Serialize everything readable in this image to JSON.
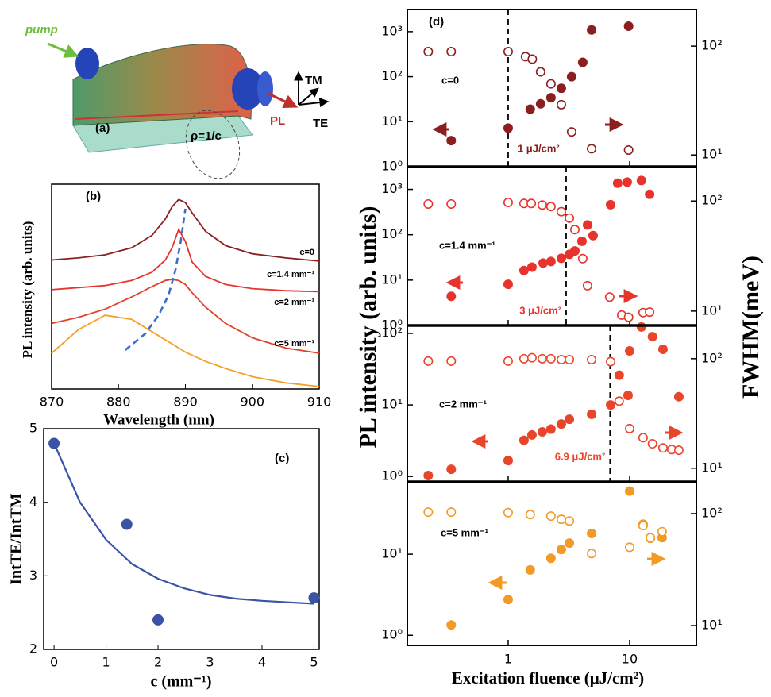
{
  "figure_a": {
    "panel": "(a)",
    "pump": "pump",
    "tm": "TM",
    "te": "TE",
    "pl": "PL",
    "radius": "ρ=1/c"
  },
  "chart_data": [
    {
      "type": "line",
      "panel": "(b)",
      "xlabel": "Wavelength (nm)",
      "ylabel": "PL intensity (arb. units)",
      "x": [
        870,
        874,
        878,
        882,
        885,
        887,
        888,
        889,
        890,
        891,
        893,
        896,
        900,
        905,
        910
      ],
      "xlim": [
        870,
        910
      ],
      "xticks": [
        870,
        880,
        890,
        900,
        910
      ],
      "ylim": [
        0,
        10
      ],
      "series": [
        {
          "name": "c=0",
          "color": "#8b1f1f",
          "values": [
            6.3,
            6.4,
            6.55,
            6.9,
            7.5,
            8.3,
            8.9,
            9.25,
            9.1,
            8.6,
            7.7,
            7.0,
            6.6,
            6.4,
            6.25
          ]
        },
        {
          "name": "c=1.4 mm⁻¹",
          "color": "#e8322c",
          "values": [
            4.85,
            4.95,
            5.05,
            5.3,
            5.7,
            6.3,
            6.9,
            7.8,
            7.2,
            6.2,
            5.5,
            5.1,
            4.9,
            4.8,
            4.75
          ]
        },
        {
          "name": "c=2 mm⁻¹",
          "color": "#e2402b",
          "values": [
            3.2,
            3.5,
            3.9,
            4.5,
            5.0,
            5.3,
            5.35,
            5.3,
            5.1,
            4.7,
            4.0,
            3.2,
            2.5,
            2.0,
            1.75
          ]
        },
        {
          "name": "c=5 mm⁻¹",
          "color": "#f5a024",
          "values": [
            1.75,
            2.9,
            3.6,
            3.4,
            2.8,
            2.4,
            2.2,
            2.0,
            1.8,
            1.65,
            1.35,
            1.0,
            0.6,
            0.3,
            0.12
          ]
        },
        {
          "color": "#3a6fc4",
          "dash": true,
          "x": [
            881,
            884,
            886,
            887.5,
            888.5,
            889.3,
            890
          ],
          "values": [
            1.9,
            2.7,
            3.6,
            4.6,
            5.8,
            7.2,
            8.8
          ]
        }
      ]
    },
    {
      "type": "scatter",
      "panel": "(c)",
      "xlabel": "c (mm⁻¹)",
      "ylabel": "IntTE/IntTM",
      "xlim": [
        -0.2,
        5.1
      ],
      "xticks": [
        0,
        1,
        2,
        3,
        4,
        5
      ],
      "ylim": [
        2,
        5
      ],
      "yticks": [
        2,
        3,
        4,
        5
      ],
      "series": [
        {
          "type": "scatter",
          "color": "#3a53a4",
          "x": [
            0,
            1.4,
            2,
            5
          ],
          "values": [
            4.8,
            3.7,
            2.4,
            2.7
          ]
        },
        {
          "type": "line",
          "color": "#3a53a4",
          "x": [
            0,
            0.5,
            1,
            1.5,
            2,
            2.5,
            3,
            3.5,
            4,
            4.5,
            5
          ],
          "values": [
            4.8,
            4.0,
            3.49,
            3.16,
            2.96,
            2.83,
            2.74,
            2.69,
            2.66,
            2.64,
            2.62
          ]
        }
      ]
    },
    {
      "type": "scatter",
      "panel": "(d)",
      "xlabel": "Excitation fluence (μJ/cm²)",
      "ylabel": "PL intensity (arb. units)",
      "y2label": "FWHM(meV)",
      "xscale": "log",
      "xlim": [
        0.148,
        35.4
      ],
      "xticks": [
        1,
        10
      ],
      "panels": [
        {
          "label": "c=0",
          "ylim": [
            1,
            3100
          ],
          "yticks": [
            {
              "value": 1,
              "label": "10⁰"
            },
            {
              "value": 10,
              "label": "10¹"
            },
            {
              "value": 100,
              "label": "10²"
            },
            {
              "value": 1000,
              "label": "10³"
            }
          ],
          "y2lim": [
            7.8,
            217
          ],
          "y2ticks": [
            {
              "value": 10,
              "label": "10¹"
            },
            {
              "value": 100,
              "label": "10²"
            }
          ],
          "threshold": {
            "value": 1,
            "label": "1 μJ/cm²"
          },
          "series": [
            {
              "marker": "filled",
              "axis": "y",
              "color": "#8b1f1f",
              "x": [
                0.34,
                1,
                1.52,
                1.85,
                2.25,
                2.74,
                3.33,
                4.11,
                4.86,
                9.8
              ],
              "values": [
                3.8,
                7.2,
                19,
                25,
                34,
                55,
                100,
                208,
                1090,
                1320
              ]
            },
            {
              "marker": "open",
              "axis": "y2",
              "color": "#8b1f1f",
              "x": [
                0.22,
                0.34,
                1,
                1.39,
                1.58,
                1.85,
                2.25,
                2.74,
                3.33,
                4.86,
                9.8
              ],
              "values": [
                89,
                89,
                89,
                80,
                76,
                58,
                45,
                29,
                16.3,
                11.4,
                11.1
              ]
            }
          ]
        },
        {
          "label": "c=1.4 mm⁻¹",
          "ylim": [
            1,
            3160
          ],
          "yticks": [
            {
              "value": 1,
              "label": "10⁰"
            },
            {
              "value": 10,
              "label": "10¹"
            },
            {
              "value": 100,
              "label": "10²"
            },
            {
              "value": 1000,
              "label": "10³"
            }
          ],
          "y2lim": [
            7.4,
            205
          ],
          "y2ticks": [
            {
              "value": 10,
              "label": "10¹"
            },
            {
              "value": 100,
              "label": "10²"
            }
          ],
          "threshold": {
            "value": 3,
            "label": "3 μJ/cm²"
          },
          "series": [
            {
              "marker": "filled",
              "axis": "y",
              "color": "#e8322c",
              "x": [
                0.34,
                1,
                1.35,
                1.57,
                1.94,
                2.25,
                2.74,
                3.19,
                3.54,
                4.05,
                4.5,
                5.0,
                6.97,
                7.97,
                9.55,
                12.5,
                14.6
              ],
              "values": [
                4.4,
                8.1,
                16.3,
                19.3,
                23.7,
                25.7,
                30.3,
                37,
                44,
                72,
                164,
                96,
                460,
                1370,
                1450,
                1570,
                780
              ]
            },
            {
              "marker": "open",
              "axis": "y2",
              "color": "#e8322c",
              "x": [
                0.22,
                0.34,
                1,
                1.35,
                1.55,
                1.91,
                2.25,
                2.74,
                3.19,
                3.54,
                4.11,
                4.5,
                6.85,
                8.6,
                9.8,
                12.9,
                14.6
              ],
              "values": [
                94,
                94,
                97,
                95,
                95,
                92,
                89,
                80,
                70,
                55,
                30,
                17,
                13.4,
                9.2,
                8.8,
                9.7,
                9.8
              ]
            }
          ]
        },
        {
          "label": "c=2 mm⁻¹",
          "ylim": [
            0.84,
            129
          ],
          "yticks": [
            {
              "value": 1,
              "label": "10⁰"
            },
            {
              "value": 10,
              "label": "10¹"
            },
            {
              "value": 100,
              "label": "10²"
            }
          ],
          "y2lim": [
            7.5,
            201
          ],
          "y2ticks": [
            {
              "value": 10,
              "label": "10¹"
            },
            {
              "value": 100,
              "label": "10²"
            }
          ],
          "threshold": {
            "value": 6.9,
            "label": "6.9 μJ/cm²"
          },
          "series": [
            {
              "marker": "filled",
              "axis": "y",
              "color": "#e9452b",
              "x": [
                0.22,
                0.34,
                1,
                1.35,
                1.57,
                1.91,
                2.25,
                2.74,
                3.19,
                4.86,
                6.97,
                8.2,
                9.7,
                10,
                12.5,
                15.4,
                18.8,
                25.4
              ],
              "values": [
                1.03,
                1.26,
                1.67,
                3.2,
                3.8,
                4.2,
                4.6,
                5.4,
                6.3,
                7.4,
                10,
                26,
                13.6,
                57,
                123,
                90,
                60,
                13
              ]
            },
            {
              "marker": "open",
              "axis": "y2",
              "color": "#e9452b",
              "x": [
                0.22,
                0.34,
                1,
                1.35,
                1.57,
                1.91,
                2.25,
                2.74,
                3.19,
                4.86,
                6.97,
                8.2,
                10,
                12.9,
                15.4,
                18.8,
                22.2,
                25.4
              ],
              "values": [
                95,
                95,
                95,
                100,
                102,
                100,
                100,
                98,
                98,
                98,
                94,
                41,
                23,
                19,
                16.7,
                15.3,
                14.8,
                14.6
              ]
            }
          ]
        },
        {
          "label": "c=5 mm⁻¹",
          "ylim": [
            0.75,
            78
          ],
          "yticks": [
            {
              "value": 1,
              "label": "10⁰"
            },
            {
              "value": 10,
              "label": "10¹"
            }
          ],
          "y2lim": [
            6.65,
            192
          ],
          "y2ticks": [
            {
              "value": 10,
              "label": "10¹"
            },
            {
              "value": 100,
              "label": "10²"
            }
          ],
          "series": [
            {
              "marker": "filled",
              "axis": "y",
              "color": "#f29a26",
              "x": [
                0.34,
                1,
                1.52,
                2.25,
                2.74,
                3.19,
                4.86,
                10,
                12.9,
                14.8,
                18.5
              ],
              "values": [
                1.34,
                2.76,
                6.4,
                8.9,
                11.4,
                13.7,
                18,
                60,
                23.5,
                15.7,
                16
              ]
            },
            {
              "marker": "open",
              "axis": "y2",
              "color": "#f29a26",
              "x": [
                0.22,
                0.34,
                1,
                1.52,
                2.25,
                2.74,
                3.19,
                4.86,
                10,
                12.9,
                14.8,
                18.5
              ],
              "values": [
                103,
                103,
                102,
                98,
                95,
                89,
                86,
                44,
                50,
                78,
                61,
                69
              ]
            }
          ]
        }
      ]
    }
  ]
}
